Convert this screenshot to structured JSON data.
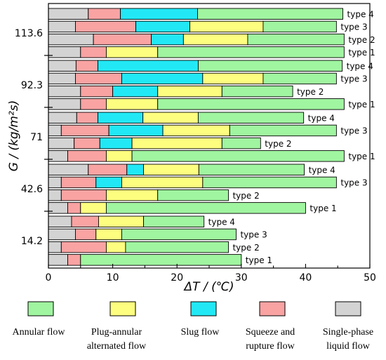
{
  "chart_data": {
    "type": "bar",
    "orientation": "horizontal",
    "stacked": true,
    "xlabel": "ΔT / (℃)",
    "ylabel": "G / (kg/m²s)",
    "xlim": [
      0,
      50
    ],
    "x_ticks": [
      0,
      10,
      20,
      30,
      40,
      50
    ],
    "grid": false,
    "legend_position": "bottom",
    "segment_order": [
      "single_phase",
      "squeeze",
      "slug",
      "plug_annular",
      "annular"
    ],
    "colors": {
      "single_phase": "#d3d3d3",
      "squeeze": "#f9a3a3",
      "slug": "#22e8f5",
      "plug_annular": "#fdfd80",
      "annular": "#a0f5a0"
    },
    "legend": [
      {
        "key": "annular",
        "lines": [
          "Annular flow"
        ]
      },
      {
        "key": "plug_annular",
        "lines": [
          "Plug-annular",
          "alternated flow"
        ]
      },
      {
        "key": "slug",
        "lines": [
          "Slug flow"
        ]
      },
      {
        "key": "squeeze",
        "lines": [
          "Squeeze and",
          "rupture flow"
        ]
      },
      {
        "key": "single_phase",
        "lines": [
          "Single-phase",
          "liquid flow"
        ]
      }
    ],
    "groups": [
      {
        "G": "113.6",
        "bars": [
          {
            "label": "type 4",
            "segments": {
              "single_phase": 6.2,
              "squeeze": 5.0,
              "slug": 12.0,
              "plug_annular": 0,
              "annular": 22.6
            }
          },
          {
            "label": "type 3",
            "segments": {
              "single_phase": 4.2,
              "squeeze": 9.4,
              "slug": 8.4,
              "plug_annular": 11.4,
              "annular": 11.4
            }
          },
          {
            "label": "type 2",
            "segments": {
              "single_phase": 7.0,
              "squeeze": 9.0,
              "slug": 5.0,
              "plug_annular": 10.0,
              "annular": 15.0
            }
          },
          {
            "label": "type 1",
            "segments": {
              "single_phase": 5.0,
              "squeeze": 4.0,
              "slug": 0,
              "plug_annular": 8.0,
              "annular": 29.0
            }
          }
        ]
      },
      {
        "G": "92.3",
        "bars": [
          {
            "label": "type 4",
            "segments": {
              "single_phase": 4.3,
              "squeeze": 3.4,
              "slug": 15.6,
              "plug_annular": 0,
              "annular": 22.4
            }
          },
          {
            "label": "type 3",
            "segments": {
              "single_phase": 4.2,
              "squeeze": 7.2,
              "slug": 12.6,
              "plug_annular": 9.4,
              "annular": 11.4
            }
          },
          {
            "label": "type 2",
            "segments": {
              "single_phase": 5.0,
              "squeeze": 5.0,
              "slug": 7.0,
              "plug_annular": 10.0,
              "annular": 11.0
            }
          },
          {
            "label": "type 1",
            "segments": {
              "single_phase": 5.0,
              "squeeze": 4.0,
              "slug": 0,
              "plug_annular": 8.0,
              "annular": 29.0
            }
          }
        ]
      },
      {
        "G": "71",
        "bars": [
          {
            "label": "type 4",
            "segments": {
              "single_phase": 4.4,
              "squeeze": 3.3,
              "slug": 7.0,
              "plug_annular": 8.6,
              "annular": 16.4
            }
          },
          {
            "label": "type 3",
            "segments": {
              "single_phase": 2.0,
              "squeeze": 7.4,
              "slug": 8.4,
              "plug_annular": 10.4,
              "annular": 16.6
            }
          },
          {
            "label": "type 2",
            "segments": {
              "single_phase": 4.0,
              "squeeze": 4.0,
              "slug": 5.0,
              "plug_annular": 14.0,
              "annular": 6.0
            }
          },
          {
            "label": "type 1",
            "segments": {
              "single_phase": 3.0,
              "squeeze": 6.0,
              "slug": 0,
              "plug_annular": 4.0,
              "annular": 33.0
            }
          }
        ]
      },
      {
        "G": "42.6",
        "bars": [
          {
            "label": "type 4",
            "segments": {
              "single_phase": 6.2,
              "squeeze": 6.0,
              "slug": 2.6,
              "plug_annular": 8.6,
              "annular": 16.4
            }
          },
          {
            "label": "type 3",
            "segments": {
              "single_phase": 2.0,
              "squeeze": 5.4,
              "slug": 4.0,
              "plug_annular": 12.6,
              "annular": 20.8
            }
          },
          {
            "label": "type 2",
            "segments": {
              "single_phase": 2.0,
              "squeeze": 7.0,
              "slug": 0,
              "plug_annular": 8.0,
              "annular": 11.0
            }
          },
          {
            "label": "type 1",
            "segments": {
              "single_phase": 3.0,
              "squeeze": 2.0,
              "slug": 0,
              "plug_annular": 4.0,
              "annular": 31.0
            }
          }
        ]
      },
      {
        "G": "14.2",
        "bars": [
          {
            "label": "type 4",
            "segments": {
              "single_phase": 3.6,
              "squeeze": 4.2,
              "slug": 0,
              "plug_annular": 7.0,
              "annular": 9.4
            }
          },
          {
            "label": "type 3",
            "segments": {
              "single_phase": 4.2,
              "squeeze": 3.2,
              "slug": 0,
              "plug_annular": 4.0,
              "annular": 17.8
            }
          },
          {
            "label": "type 2",
            "segments": {
              "single_phase": 2.0,
              "squeeze": 7.0,
              "slug": 0,
              "plug_annular": 3.0,
              "annular": 16.0
            }
          },
          {
            "label": "type 1",
            "segments": {
              "single_phase": 3.0,
              "squeeze": 2.0,
              "slug": 0,
              "plug_annular": 0,
              "annular": 25.0
            }
          }
        ]
      }
    ]
  }
}
